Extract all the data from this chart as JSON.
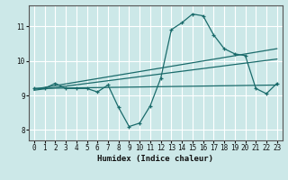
{
  "xlabel": "Humidex (Indice chaleur)",
  "bg_color": "#cce8e8",
  "grid_color": "#ffffff",
  "line_color": "#1a6b6b",
  "xlim": [
    -0.5,
    23.5
  ],
  "ylim": [
    7.7,
    11.6
  ],
  "xticks": [
    0,
    1,
    2,
    3,
    4,
    5,
    6,
    7,
    8,
    9,
    10,
    11,
    12,
    13,
    14,
    15,
    16,
    17,
    18,
    19,
    20,
    21,
    22,
    23
  ],
  "yticks": [
    8,
    9,
    10,
    11
  ],
  "line1_x": [
    0,
    1,
    2,
    3,
    4,
    5,
    6,
    7,
    8,
    9,
    10,
    11,
    12,
    13,
    14,
    15,
    16,
    17,
    18,
    19,
    20,
    21,
    22,
    23
  ],
  "line1_y": [
    9.2,
    9.2,
    9.35,
    9.2,
    9.2,
    9.2,
    9.1,
    9.3,
    8.65,
    8.1,
    8.2,
    8.7,
    9.5,
    10.9,
    11.1,
    11.35,
    11.3,
    10.75,
    10.35,
    10.2,
    10.15,
    9.2,
    9.05,
    9.35
  ],
  "line2_x": [
    0,
    23
  ],
  "line2_y": [
    9.2,
    9.3
  ],
  "line3_x": [
    0,
    23
  ],
  "line3_y": [
    9.18,
    10.35
  ],
  "line4_x": [
    0,
    23
  ],
  "line4_y": [
    9.15,
    10.05
  ]
}
